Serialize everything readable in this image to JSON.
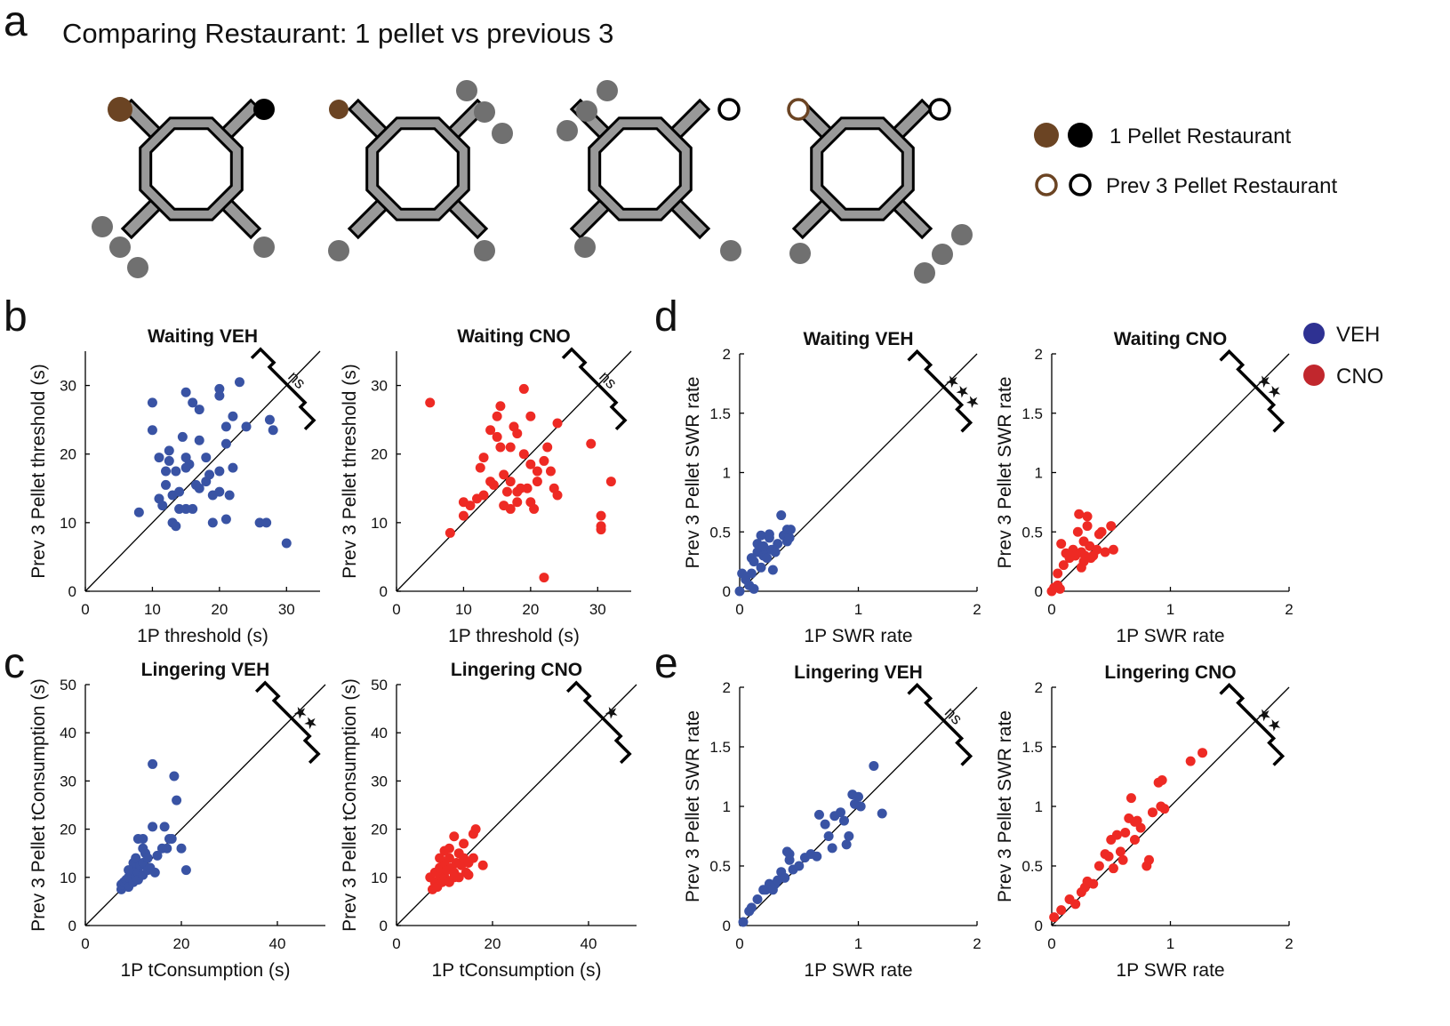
{
  "panel_labels": [
    "a",
    "b",
    "c",
    "d",
    "e"
  ],
  "header": {
    "title": "Comparing Restaurant: 1 pellet vs previous 3"
  },
  "pellet_legend": [
    "1 Pellet Restaurant",
    "Prev 3 Pellet Restaurant"
  ],
  "group_legend": [
    {
      "name": "VEH",
      "color": "#2e3192"
    },
    {
      "name": "CNO",
      "color": "#c1272d"
    }
  ],
  "chart_data": [
    {
      "type": "scatter",
      "title": "Waiting VEH",
      "x_label": "1P threshold (s)",
      "y_label": "Prev 3 Pellet threshold (s)",
      "xlim": [
        0,
        35
      ],
      "ylim": [
        0,
        35
      ],
      "xticks": [
        0,
        10,
        20,
        30
      ],
      "yticks": [
        0,
        10,
        20,
        30
      ],
      "annotation": "ns",
      "series": [
        {
          "color": "#3953a4",
          "x": [
            8,
            10,
            10,
            11,
            11,
            11.5,
            12,
            12,
            12.5,
            12.5,
            13,
            13,
            13.5,
            13.5,
            14,
            14,
            14.5,
            15,
            15,
            15,
            15.5,
            16,
            16,
            16.5,
            17,
            17,
            17,
            18,
            18.5,
            19,
            19,
            20,
            20,
            20,
            20,
            21,
            21,
            21,
            21.5,
            22,
            22,
            23,
            24,
            26,
            27,
            27.5,
            28,
            30,
            15,
            18
          ],
          "values": [
            11.5,
            27.5,
            23.5,
            13.5,
            19.5,
            12.5,
            17.5,
            15.5,
            19,
            20.5,
            14,
            10,
            9.5,
            17.5,
            12,
            14.5,
            22.5,
            19.5,
            29,
            12,
            18.5,
            12,
            27.5,
            15.5,
            15,
            26.5,
            22,
            16,
            17,
            14,
            10,
            29.5,
            28.5,
            17.5,
            14.5,
            21.5,
            10.5,
            24,
            14,
            18,
            25.5,
            30.5,
            24,
            10,
            10,
            25,
            23.5,
            7,
            18,
            19.5
          ]
        }
      ]
    },
    {
      "type": "scatter",
      "title": "Waiting CNO",
      "x_label": "1P threshold (s)",
      "y_label": "Prev 3 Pellet threshold (s)",
      "xlim": [
        0,
        35
      ],
      "ylim": [
        0,
        35
      ],
      "xticks": [
        0,
        10,
        20,
        30
      ],
      "yticks": [
        0,
        10,
        20,
        30
      ],
      "annotation": "ns",
      "series": [
        {
          "color": "#ee2a24",
          "x": [
            5,
            8,
            10,
            10,
            11,
            12,
            12.5,
            13,
            13,
            14,
            14,
            14.5,
            15,
            15,
            15.5,
            16,
            16,
            16.5,
            17,
            17,
            17,
            17.5,
            18,
            18,
            18.5,
            19,
            19,
            19.5,
            20,
            20,
            20.5,
            21,
            21,
            22,
            22,
            22.5,
            23,
            23.5,
            24,
            24,
            29,
            30.5,
            30.5,
            30.5,
            32,
            18,
            20,
            15.5
          ],
          "values": [
            27.5,
            8.5,
            13,
            11,
            12.5,
            13.5,
            18,
            14,
            19.5,
            23.5,
            16,
            15.5,
            22.5,
            25.5,
            27,
            17,
            12.5,
            14.5,
            12,
            16,
            21,
            24,
            13,
            23,
            15,
            29.5,
            20,
            15,
            25.5,
            13,
            12,
            16,
            17.5,
            2,
            19,
            21,
            17.5,
            15,
            14,
            24.5,
            21.5,
            11,
            9.5,
            9,
            16,
            14.5,
            18.5,
            21
          ]
        }
      ]
    },
    {
      "type": "scatter",
      "title": "Lingering VEH",
      "x_label": "1P tConsumption (s)",
      "y_label": "Prev 3 Pellet tConsumption (s)",
      "xlim": [
        0,
        50
      ],
      "ylim": [
        0,
        50
      ],
      "xticks": [
        0,
        20,
        40
      ],
      "yticks": [
        0,
        10,
        20,
        30,
        40,
        50
      ],
      "annotation": "★★",
      "series": [
        {
          "color": "#3953a4",
          "x": [
            7.5,
            7.5,
            8,
            8.5,
            9,
            9,
            9.5,
            10,
            10,
            10,
            10.5,
            10.5,
            11,
            11,
            11,
            11.5,
            12,
            12,
            12,
            12.5,
            13,
            13,
            13.5,
            14,
            14,
            14.5,
            15,
            16,
            16.5,
            17,
            17.5,
            18,
            18.5,
            19,
            20,
            21,
            12,
            9
          ],
          "values": [
            7.5,
            8.5,
            9,
            9.5,
            8,
            10,
            11,
            9,
            12,
            13,
            10,
            14,
            11,
            18,
            9.5,
            12.5,
            10.5,
            18,
            13,
            15,
            11.5,
            14,
            12,
            20.5,
            33.5,
            11,
            14.5,
            16,
            20.5,
            16,
            18,
            18,
            31,
            26,
            16,
            11.5,
            16,
            11.5
          ]
        }
      ]
    },
    {
      "type": "scatter",
      "title": "Lingering CNO",
      "x_label": "1P tConsumption (s)",
      "y_label": "Prev 3 Pellet tConsumption (s)",
      "xlim": [
        0,
        50
      ],
      "ylim": [
        0,
        50
      ],
      "xticks": [
        0,
        20,
        40
      ],
      "yticks": [
        0,
        10,
        20,
        30,
        40,
        50
      ],
      "annotation": "★",
      "series": [
        {
          "color": "#ee2a24",
          "x": [
            7,
            7.5,
            8,
            8,
            8.5,
            9,
            9,
            9.5,
            10,
            10,
            10,
            10.5,
            11,
            11,
            11,
            11.5,
            12,
            12,
            12.5,
            13,
            13,
            13.5,
            14,
            14,
            14.5,
            15,
            15,
            16,
            16.5,
            16,
            18,
            12,
            9
          ],
          "values": [
            10,
            7.5,
            9,
            11,
            8,
            10.5,
            12,
            9,
            15.5,
            13,
            10,
            11.5,
            9,
            14,
            16,
            12,
            18.5,
            11,
            13,
            10,
            15,
            12.5,
            14,
            17,
            11,
            13,
            10.5,
            19,
            20,
            14,
            12.5,
            10,
            14
          ]
        }
      ]
    },
    {
      "type": "scatter",
      "title": "Waiting VEH",
      "x_label": "1P SWR rate",
      "y_label": "Prev 3 Pellet SWR rate",
      "xlim": [
        0,
        2
      ],
      "ylim": [
        0,
        2
      ],
      "xticks": [
        0,
        1,
        2
      ],
      "yticks": [
        0,
        0.5,
        1,
        1.5,
        2
      ],
      "annotation": "★★★",
      "series": [
        {
          "color": "#3953a4",
          "x": [
            0,
            0.02,
            0.05,
            0.08,
            0.1,
            0.1,
            0.12,
            0.15,
            0.15,
            0.18,
            0.18,
            0.2,
            0.22,
            0.23,
            0.25,
            0.25,
            0.27,
            0.28,
            0.3,
            0.32,
            0.35,
            0.37,
            0.4,
            0.4,
            0.42,
            0.43,
            0.2,
            0.12
          ],
          "values": [
            0,
            0.15,
            0.1,
            0.05,
            0.28,
            0.15,
            0.02,
            0.33,
            0.4,
            0.2,
            0.47,
            0.3,
            0.35,
            0.28,
            0.45,
            0.48,
            0.35,
            0.18,
            0.33,
            0.4,
            0.64,
            0.47,
            0.42,
            0.52,
            0.45,
            0.52,
            0.38,
            0.25
          ]
        }
      ]
    },
    {
      "type": "scatter",
      "title": "Waiting CNO",
      "x_label": "1P SWR rate",
      "y_label": "Prev 3 Pellet SWR rate",
      "xlim": [
        0,
        2
      ],
      "ylim": [
        0,
        2
      ],
      "xticks": [
        0,
        1,
        2
      ],
      "yticks": [
        0,
        0.5,
        1,
        1.5,
        2
      ],
      "annotation": "★★",
      "series": [
        {
          "color": "#ee2a24",
          "x": [
            0,
            0.02,
            0.05,
            0.05,
            0.07,
            0.08,
            0.1,
            0.12,
            0.15,
            0.18,
            0.2,
            0.22,
            0.23,
            0.25,
            0.25,
            0.27,
            0.28,
            0.3,
            0.3,
            0.32,
            0.33,
            0.35,
            0.38,
            0.4,
            0.42,
            0.45,
            0.5,
            0.52,
            0.15,
            0.27
          ],
          "values": [
            0,
            0.03,
            0.05,
            0.15,
            0.02,
            0.4,
            0.22,
            0.32,
            0.28,
            0.35,
            0.3,
            0.5,
            0.65,
            0.33,
            0.2,
            0.42,
            0.3,
            0.63,
            0.55,
            0.38,
            0.28,
            0.3,
            0.35,
            0.48,
            0.5,
            0.33,
            0.55,
            0.35,
            0.3,
            0.25
          ]
        }
      ]
    },
    {
      "type": "scatter",
      "title": "Lingering VEH",
      "x_label": "1P SWR rate",
      "y_label": "Prev 3 Pellet SWR rate",
      "xlim": [
        0,
        2
      ],
      "ylim": [
        0,
        2
      ],
      "xticks": [
        0,
        1,
        2
      ],
      "yticks": [
        0,
        0.5,
        1,
        1.5,
        2
      ],
      "annotation": "ns",
      "series": [
        {
          "color": "#3953a4",
          "x": [
            0.03,
            0.08,
            0.1,
            0.15,
            0.2,
            0.22,
            0.25,
            0.28,
            0.3,
            0.32,
            0.35,
            0.38,
            0.4,
            0.42,
            0.42,
            0.45,
            0.5,
            0.55,
            0.6,
            0.65,
            0.67,
            0.72,
            0.75,
            0.78,
            0.8,
            0.85,
            0.88,
            0.9,
            0.92,
            0.95,
            0.97,
            1.0,
            1.02,
            1.13,
            1.2
          ],
          "values": [
            0.03,
            0.12,
            0.15,
            0.22,
            0.3,
            0.3,
            0.35,
            0.3,
            0.35,
            0.38,
            0.45,
            0.4,
            0.62,
            0.55,
            0.6,
            0.47,
            0.5,
            0.57,
            0.6,
            0.58,
            0.93,
            0.85,
            0.75,
            0.65,
            0.92,
            0.95,
            0.88,
            0.68,
            0.75,
            1.1,
            1.02,
            1.08,
            1.0,
            1.34,
            0.94
          ]
        }
      ]
    },
    {
      "type": "scatter",
      "title": "Lingering CNO",
      "x_label": "1P SWR rate",
      "y_label": "Prev 3 Pellet SWR rate",
      "xlim": [
        0,
        2
      ],
      "ylim": [
        0,
        2
      ],
      "xticks": [
        0,
        1,
        2
      ],
      "yticks": [
        0,
        0.5,
        1,
        1.5,
        2
      ],
      "annotation": "★★",
      "series": [
        {
          "color": "#ee2a24",
          "x": [
            0.02,
            0.08,
            0.15,
            0.2,
            0.25,
            0.28,
            0.3,
            0.35,
            0.4,
            0.45,
            0.48,
            0.5,
            0.52,
            0.55,
            0.58,
            0.6,
            0.62,
            0.65,
            0.67,
            0.7,
            0.72,
            0.75,
            0.8,
            0.82,
            0.85,
            0.9,
            0.92,
            0.93,
            0.95,
            1.17,
            1.27,
            0.7
          ],
          "values": [
            0.07,
            0.13,
            0.22,
            0.18,
            0.28,
            0.32,
            0.37,
            0.35,
            0.5,
            0.6,
            0.58,
            0.72,
            0.48,
            0.76,
            0.62,
            0.55,
            0.78,
            0.9,
            1.07,
            0.72,
            0.88,
            0.82,
            0.5,
            0.55,
            0.95,
            1.2,
            1.0,
            1.22,
            0.98,
            1.38,
            1.45,
            0.87
          ]
        }
      ]
    }
  ]
}
